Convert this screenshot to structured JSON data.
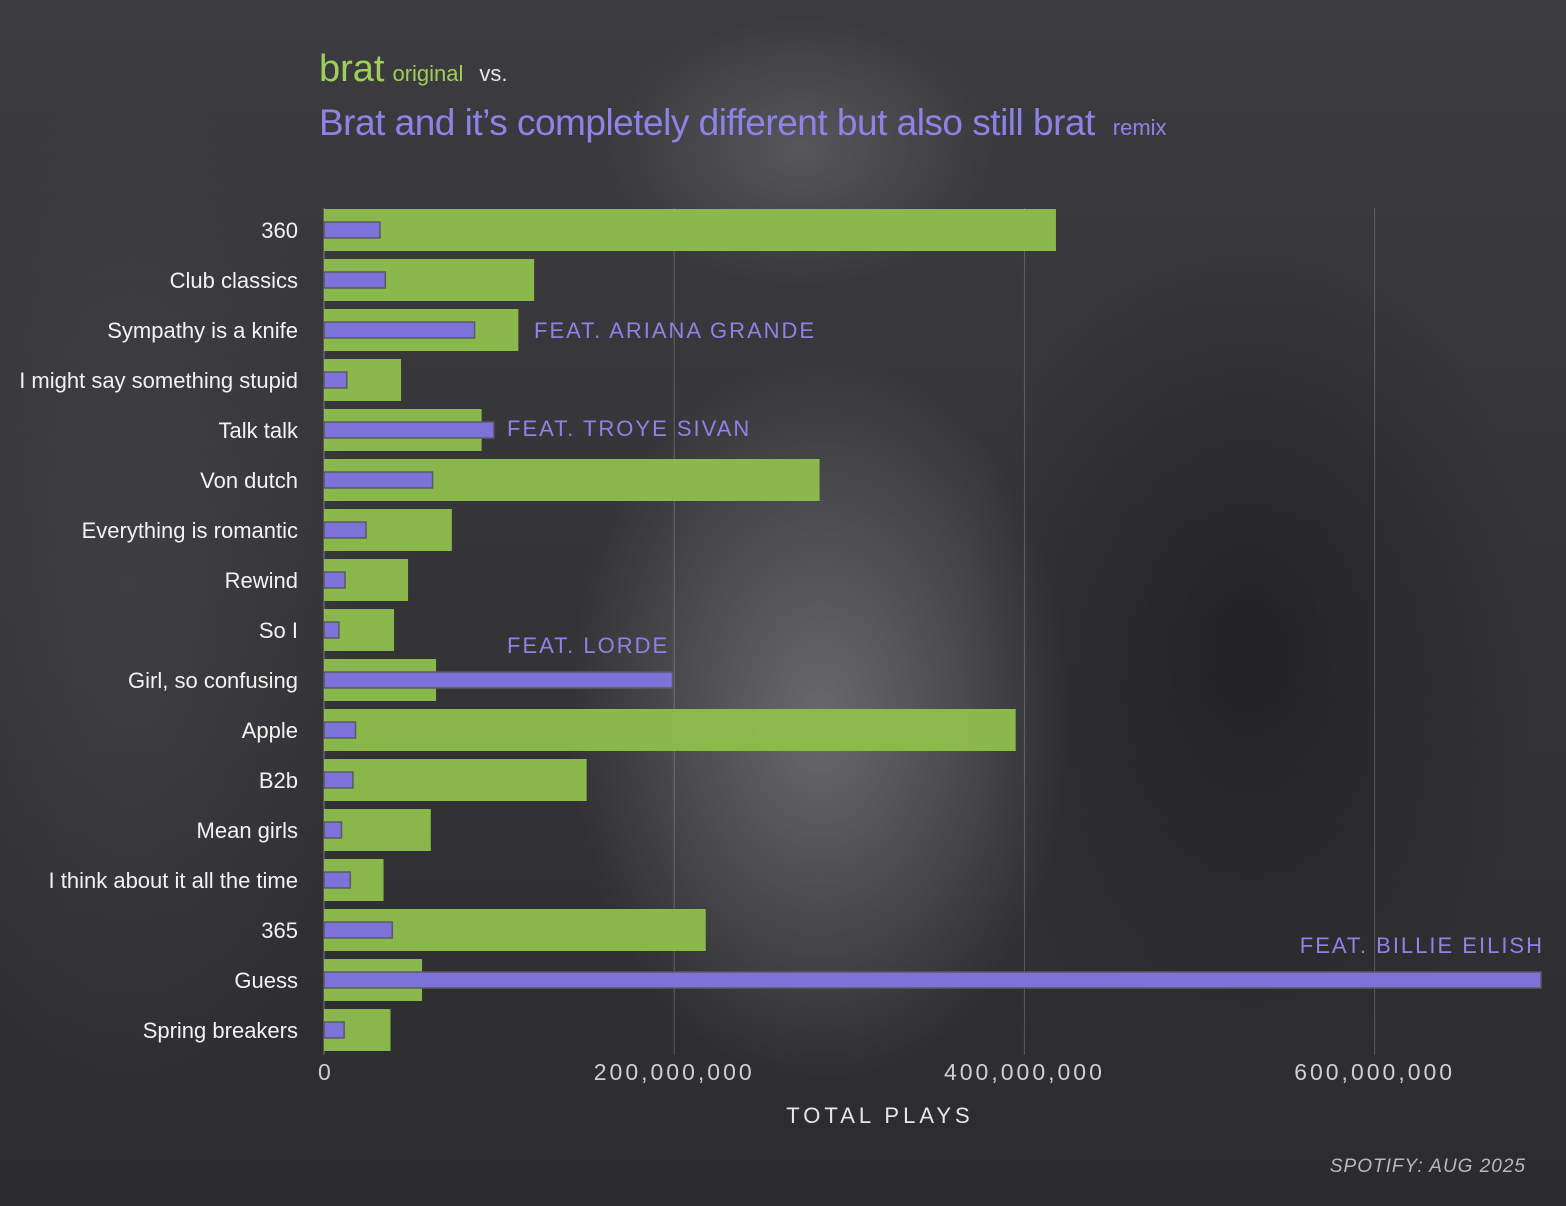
{
  "title": {
    "original_name": "brat",
    "original_tag": "original",
    "vs": "vs.",
    "remix_name": "Brat and it’s completely different but also still brat",
    "remix_tag": "remix"
  },
  "source": "SPOTIFY: AUG 2025",
  "colors": {
    "original": "#8fbf4d",
    "remix": "#7d72d8",
    "background": "#3a3a3e"
  },
  "chart_data": {
    "type": "bar",
    "orientation": "horizontal",
    "categories": [
      "360",
      "Club classics",
      "Sympathy is a knife",
      "I might say something stupid",
      "Talk talk",
      "Von dutch",
      "Everything is romantic",
      "Rewind",
      "So I",
      "Girl, so confusing",
      "Apple",
      "B2b",
      "Mean girls",
      "I think about it all the time",
      "365",
      "Guess",
      "Spring breakers"
    ],
    "series": [
      {
        "name": "original",
        "values": [
          418000000,
          120000000,
          111000000,
          44000000,
          90000000,
          283000000,
          73000000,
          48000000,
          40000000,
          64000000,
          395000000,
          150000000,
          61000000,
          34000000,
          218000000,
          56000000,
          38000000
        ]
      },
      {
        "name": "remix",
        "values": [
          32000000,
          35000000,
          86000000,
          13000000,
          97000000,
          62000000,
          24000000,
          12000000,
          8500000,
          199000000,
          18000000,
          16500000,
          10000000,
          15000000,
          39000000,
          695000000,
          11500000
        ]
      }
    ],
    "annotations": [
      {
        "category": "Sympathy is a knife",
        "text": "FEAT. ARIANA GRANDE"
      },
      {
        "category": "Talk talk",
        "text": "FEAT. TROYE SIVAN"
      },
      {
        "category": "Girl, so confusing",
        "text": "FEAT. LORDE"
      },
      {
        "category": "Guess",
        "text": "FEAT.  BILLIE EILISH"
      }
    ],
    "xlabel": "TOTAL PLAYS",
    "ylabel": "",
    "xlim": [
      0,
      695000000
    ],
    "xticks": [
      0,
      200000000,
      400000000,
      600000000
    ],
    "xtick_labels": [
      "0",
      "200,000,000",
      "400,000,000",
      "600,000,000"
    ],
    "grid": "vertical"
  }
}
